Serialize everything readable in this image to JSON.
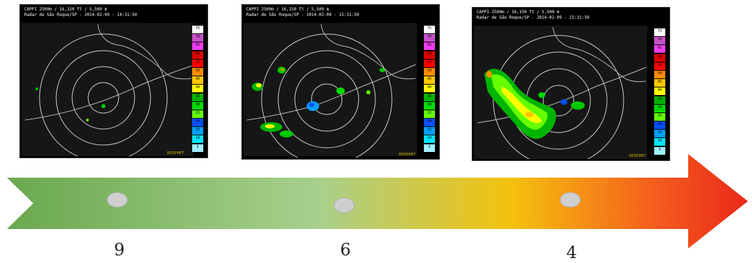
{
  "panels": [
    {
      "header_line1": "CAPPI 2500m / 16,150 ft / 5,500 m",
      "header_line2": "Radar de São Roque/SP - 2014-02-09 - 14:31:50",
      "credit": "REDEMET"
    },
    {
      "header_line1": "CAPPI 2500m / 16,150 ft / 5,500 m",
      "header_line2": "Radar de São Roque/SP - 2014-02-09 - 15:31:50",
      "credit": "REDEMET"
    },
    {
      "header_line1": "CAPPI 2500m / 16,150 ft / 5,500 m",
      "header_line2": "Radar de São Roque/SP - 2014-02-09 - 15:31:50",
      "credit": "REDEMET"
    }
  ],
  "legend_values": [
    "75",
    "70",
    "65",
    "60",
    "55",
    "50",
    "45",
    "40",
    "35",
    "30",
    "25",
    "20",
    "15",
    "10",
    "5"
  ],
  "legend_colors": [
    "#ffffff",
    "#c850c8",
    "#f03cf0",
    "#dc0000",
    "#ff0000",
    "#ff8c00",
    "#ffc800",
    "#ffff00",
    "#00b400",
    "#00dc00",
    "#64ff00",
    "#0050ff",
    "#00a0ff",
    "#00e6ff",
    "#a0f0ff"
  ],
  "timeline": {
    "labels": [
      "9",
      "6",
      "4"
    ],
    "gradient": [
      "#6aa84f",
      "#a8d08d",
      "#f4c20d",
      "#f55a1e",
      "#e8281a"
    ]
  }
}
